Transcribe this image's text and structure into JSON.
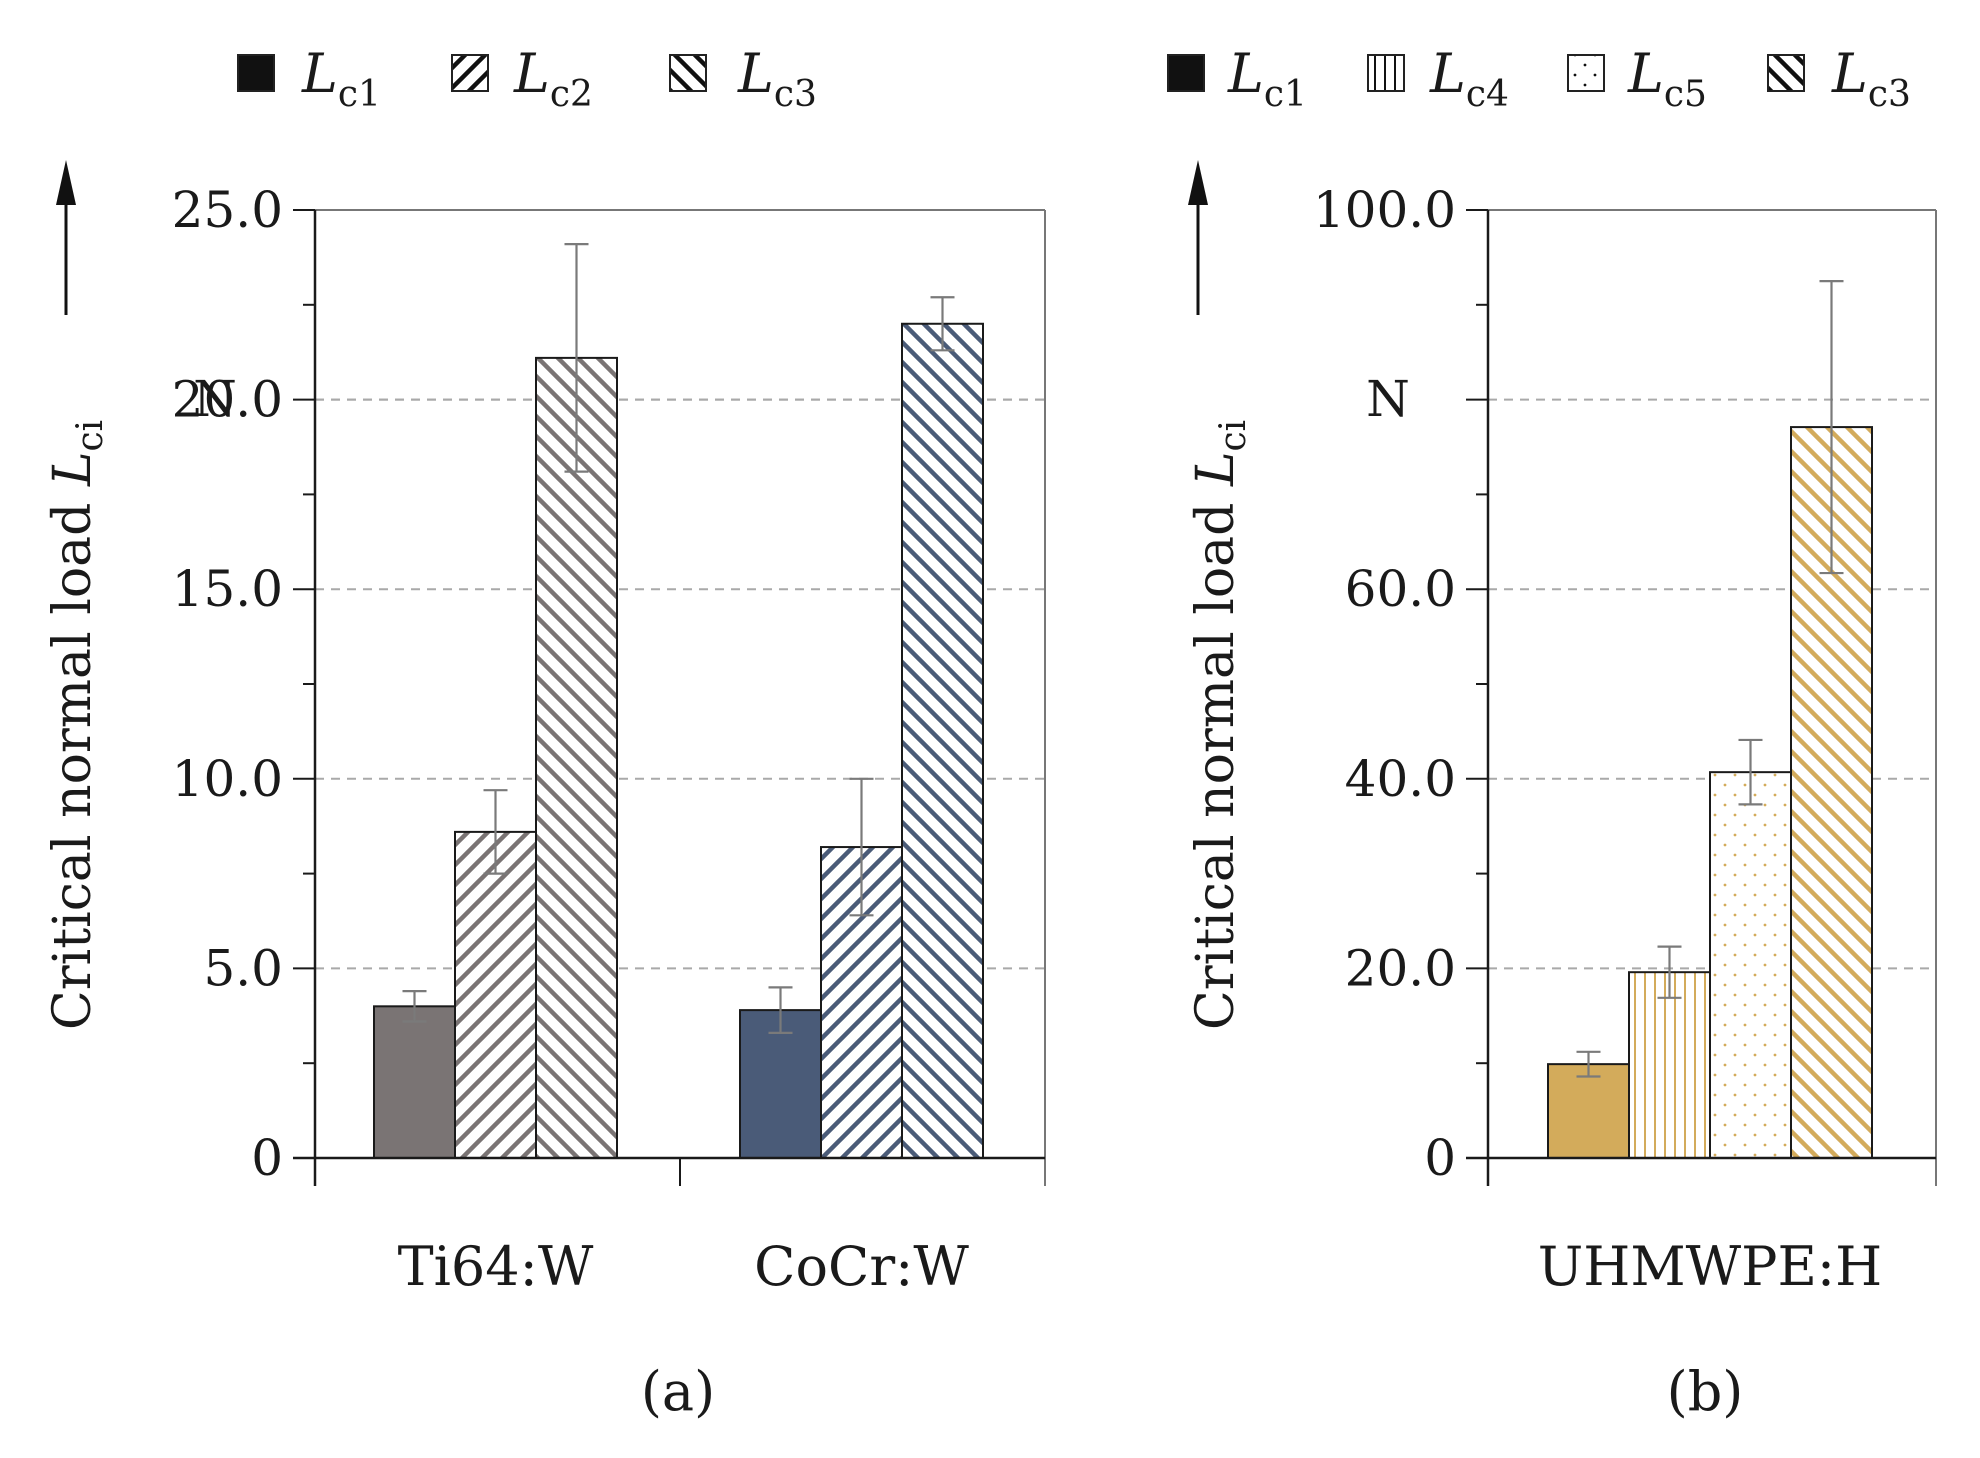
{
  "chart_data": [
    {
      "type": "bar",
      "panel_label": "(a)",
      "ylabel": {
        "main": "Critical normal load ",
        "symbol": "L",
        "sub": "ci"
      },
      "yunit": "N",
      "ylim": [
        0,
        25
      ],
      "yticks": [
        "0",
        "5.0",
        "10.0",
        "15.0",
        "20.0",
        "25.0"
      ],
      "ytick_values": [
        0,
        5,
        10,
        15,
        20,
        25
      ],
      "legend": [
        {
          "symbol": "L",
          "sub": "c1",
          "pattern": "solid"
        },
        {
          "symbol": "L",
          "sub": "c2",
          "pattern": "diag-up"
        },
        {
          "symbol": "L",
          "sub": "c3",
          "pattern": "diag-down"
        }
      ],
      "categories": [
        "Ti64:W",
        "CoCr:W"
      ],
      "category_colors": [
        "#7a7474",
        "#4a5b78"
      ],
      "series": [
        {
          "name": "Lc1",
          "pattern": "solid",
          "values": [
            4.0,
            3.9
          ],
          "errors": [
            0.4,
            0.6
          ]
        },
        {
          "name": "Lc2",
          "pattern": "diag-up",
          "values": [
            8.6,
            8.2
          ],
          "errors": [
            1.1,
            1.8
          ]
        },
        {
          "name": "Lc3",
          "pattern": "diag-down",
          "values": [
            21.1,
            22.0
          ],
          "errors": [
            3.0,
            0.7
          ]
        }
      ],
      "gridlines": "dashed"
    },
    {
      "type": "bar",
      "panel_label": "(b)",
      "ylabel": {
        "main": "Critical normal load ",
        "symbol": "L",
        "sub": "ci"
      },
      "yunit": "N",
      "ylim": [
        0,
        100
      ],
      "yticks": [
        "0",
        "20.0",
        "40.0",
        "60.0",
        "100.0"
      ],
      "ytick_values": [
        0,
        20,
        40,
        60,
        100
      ],
      "legend": [
        {
          "symbol": "L",
          "sub": "c1",
          "pattern": "solid"
        },
        {
          "symbol": "L",
          "sub": "c4",
          "pattern": "vertical"
        },
        {
          "symbol": "L",
          "sub": "c5",
          "pattern": "dots"
        },
        {
          "symbol": "L",
          "sub": "c3",
          "pattern": "diag-down"
        }
      ],
      "categories": [
        "UHMWPE:H"
      ],
      "category_colors": [
        "#d3ab5b"
      ],
      "series": [
        {
          "name": "Lc1",
          "pattern": "solid",
          "values": [
            9.9
          ],
          "errors": [
            1.3
          ]
        },
        {
          "name": "Lc4",
          "pattern": "vertical",
          "values": [
            19.6
          ],
          "errors": [
            2.7
          ]
        },
        {
          "name": "Lc5",
          "pattern": "dots",
          "values": [
            40.7
          ],
          "errors": [
            3.4
          ]
        },
        {
          "name": "Lc3",
          "pattern": "diag-down",
          "values": [
            77.1
          ],
          "errors": [
            15.4
          ]
        }
      ],
      "gridlines": "dashed"
    }
  ]
}
